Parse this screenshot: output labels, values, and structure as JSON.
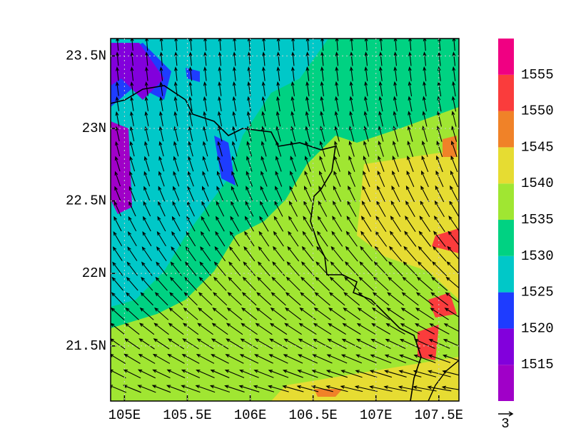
{
  "map": {
    "xlim": [
      104.89,
      107.66
    ],
    "ylim": [
      21.12,
      23.62
    ],
    "xticks": [
      {
        "value": 105,
        "label": "105E"
      },
      {
        "value": 105.5,
        "label": "105.5E"
      },
      {
        "value": 106,
        "label": "106E"
      },
      {
        "value": 106.5,
        "label": "106.5E"
      },
      {
        "value": 107,
        "label": "107E"
      },
      {
        "value": 107.5,
        "label": "107.5E"
      }
    ],
    "yticks": [
      {
        "value": 21.5,
        "label": "21.5N"
      },
      {
        "value": 22,
        "label": "22N"
      },
      {
        "value": 22.5,
        "label": "22.5N"
      },
      {
        "value": 23,
        "label": "23N"
      },
      {
        "value": 23.5,
        "label": "23.5N"
      }
    ],
    "colorbar": {
      "clim": [
        1510,
        1560
      ],
      "levels": [
        1515,
        1520,
        1525,
        1530,
        1535,
        1540,
        1545,
        1550,
        1555
      ],
      "colors": [
        "#a000c8",
        "#8200dc",
        "#1e3cff",
        "#00c8c8",
        "#00d282",
        "#a0e632",
        "#e6dc32",
        "#f08228",
        "#fa3c3c",
        "#f00082"
      ]
    },
    "reference_vector": {
      "label": "3"
    }
  }
}
